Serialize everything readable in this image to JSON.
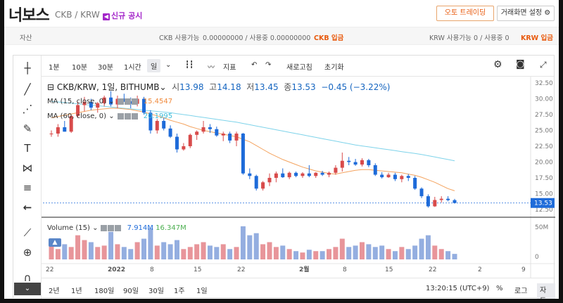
{
  "header": {
    "brand": "너보스",
    "pair": "CKB / KRW",
    "notice": "신규 공시",
    "auto_trade": "오토 트레이딩",
    "screen_settings": "거래화면 설정"
  },
  "balance": {
    "assets_label": "자산",
    "ckb_label": "CKB 사용가능",
    "ckb_value": "0.00000000 / 사용중  0.00000000",
    "ckb_deposit": "CKB 입금",
    "krw_label": "KRW 사용가능",
    "krw_value": "0 / 사용중  0",
    "krw_deposit": "KRW 입금"
  },
  "toolbar": {
    "intervals": [
      "1분",
      "10분",
      "30분",
      "1시간",
      "일"
    ],
    "selected_interval": "일",
    "indicators": "지표",
    "refresh": "새로고침",
    "reset": "초기화"
  },
  "legend": {
    "symbol": "CKB/KRW, 1일, BITHUMB",
    "open_label": "시",
    "open": "13.98",
    "high_label": "고",
    "high": "14.18",
    "low_label": "저",
    "low": "13.45",
    "close_label": "종",
    "close": "13.53",
    "change": "−0.45 (−3.22%)",
    "ma15_label": "MA (15, close, 0)",
    "ma15": "15.4547",
    "ma60_label": "MA (60, close, 0)",
    "ma60": "20.1995",
    "vol_label": "Volume (15)",
    "vol_val": "7.914M",
    "vol_ma": "16.347M"
  },
  "bottom": {
    "ranges": [
      "2년",
      "1년",
      "180일",
      "90일",
      "30일",
      "1주",
      "1일"
    ],
    "time": "13:20:15 (UTC+9)",
    "pct": "%",
    "log": "로그",
    "auto": "자동"
  },
  "colors": {
    "up": "#d84b4b",
    "down": "#1e6bd9",
    "ma15": "#f4a35f",
    "ma60": "#7ed3ea",
    "accent": "#e8590c"
  },
  "chart_data": {
    "type": "candlestick",
    "y_ticks": [
      "32.50",
      "30.00",
      "27.50",
      "25.00",
      "22.50",
      "20.00",
      "17.50",
      "15.00",
      "12.50"
    ],
    "last_price": "13.53",
    "volume_ticks": [
      "50M",
      "0"
    ],
    "x_ticks": [
      "22",
      "2022",
      "8",
      "15",
      "22",
      "2월",
      "8",
      "15",
      "22",
      "2",
      "9"
    ],
    "candles": [
      [
        24.5,
        25.0,
        24.0,
        24.5
      ],
      [
        24.5,
        26.0,
        24.0,
        25.5
      ],
      [
        25.5,
        26.5,
        24.8,
        24.8
      ],
      [
        24.8,
        27.5,
        24.6,
        27.3
      ],
      [
        27.3,
        29.5,
        27.0,
        29.0
      ],
      [
        29.0,
        30.3,
        28.0,
        29.5
      ],
      [
        29.5,
        30.0,
        28.2,
        28.6
      ],
      [
        28.6,
        29.5,
        27.8,
        29.3
      ],
      [
        29.3,
        30.5,
        28.8,
        30.2
      ],
      [
        30.2,
        31.2,
        28.8,
        29.1
      ],
      [
        29.1,
        30.5,
        28.5,
        30.0
      ],
      [
        30.0,
        30.8,
        29.5,
        29.6
      ],
      [
        29.6,
        30.2,
        28.5,
        29.2
      ],
      [
        29.2,
        30.5,
        28.8,
        30.0
      ],
      [
        30.0,
        30.3,
        27.5,
        27.8
      ],
      [
        27.8,
        28.2,
        24.5,
        25.0
      ],
      [
        25.0,
        26.8,
        24.5,
        26.5
      ],
      [
        26.5,
        27.0,
        25.0,
        25.3
      ],
      [
        25.3,
        25.8,
        23.8,
        24.0
      ],
      [
        24.0,
        24.5,
        21.5,
        22.0
      ],
      [
        22.0,
        23.0,
        21.8,
        22.5
      ],
      [
        22.5,
        24.5,
        22.2,
        24.3
      ],
      [
        24.3,
        25.0,
        23.5,
        24.8
      ],
      [
        24.8,
        26.5,
        24.5,
        25.5
      ],
      [
        25.5,
        26.0,
        24.6,
        25.2
      ],
      [
        25.2,
        25.6,
        24.0,
        24.2
      ],
      [
        24.2,
        24.8,
        23.3,
        24.5
      ],
      [
        24.5,
        24.8,
        23.0,
        23.4
      ],
      [
        23.4,
        24.8,
        22.5,
        24.5
      ],
      [
        24.5,
        24.6,
        18.0,
        18.2
      ],
      [
        18.2,
        19.0,
        17.3,
        17.8
      ],
      [
        17.8,
        18.0,
        15.5,
        15.8
      ],
      [
        15.8,
        17.0,
        15.5,
        16.8
      ],
      [
        16.8,
        18.2,
        16.2,
        17.5
      ],
      [
        17.5,
        18.5,
        16.8,
        18.2
      ],
      [
        18.2,
        19.0,
        17.5,
        17.6
      ],
      [
        17.6,
        18.5,
        17.3,
        18.3
      ],
      [
        18.3,
        18.5,
        17.6,
        17.8
      ],
      [
        17.8,
        18.4,
        17.5,
        18.2
      ],
      [
        18.2,
        19.5,
        17.6,
        17.8
      ],
      [
        17.8,
        18.4,
        17.5,
        18.3
      ],
      [
        18.3,
        18.6,
        17.8,
        18.0
      ],
      [
        18.0,
        18.5,
        17.6,
        18.3
      ],
      [
        18.3,
        19.5,
        18.0,
        19.1
      ],
      [
        19.1,
        21.5,
        18.5,
        20.2
      ],
      [
        20.2,
        20.8,
        19.5,
        20.0
      ],
      [
        20.0,
        20.5,
        19.4,
        19.6
      ],
      [
        19.6,
        20.6,
        19.3,
        20.3
      ],
      [
        20.3,
        20.5,
        19.2,
        19.5
      ],
      [
        19.5,
        19.8,
        17.8,
        18.0
      ],
      [
        18.0,
        18.4,
        17.4,
        17.6
      ],
      [
        17.6,
        18.3,
        17.5,
        18.0
      ],
      [
        18.0,
        18.3,
        17.0,
        17.3
      ],
      [
        17.3,
        18.0,
        16.8,
        17.8
      ],
      [
        17.8,
        18.1,
        17.0,
        17.5
      ],
      [
        17.5,
        17.8,
        15.6,
        15.8
      ],
      [
        15.8,
        16.0,
        14.3,
        14.6
      ],
      [
        14.6,
        14.9,
        12.8,
        13.0
      ],
      [
        13.0,
        14.5,
        12.9,
        14.0
      ],
      [
        14.0,
        14.6,
        13.6,
        14.2
      ],
      [
        14.2,
        14.6,
        13.8,
        13.98
      ],
      [
        13.98,
        14.18,
        13.45,
        13.53
      ]
    ],
    "ma60": [
      29.6,
      29.5,
      29.4,
      29.3,
      29.2,
      29.1,
      29.0,
      28.9,
      28.8,
      28.7,
      28.6,
      28.5,
      28.4,
      28.3,
      28.2,
      28.1,
      28.0,
      27.9,
      27.8,
      27.65,
      27.5,
      27.35,
      27.2,
      27.05,
      26.9,
      26.75,
      26.6,
      26.45,
      26.3,
      26.1,
      25.9,
      25.7,
      25.5,
      25.3,
      25.1,
      24.9,
      24.7,
      24.5,
      24.3,
      24.1,
      23.9,
      23.7,
      23.5,
      23.3,
      23.1,
      22.9,
      22.7,
      22.55,
      22.4,
      22.25,
      22.1,
      21.95,
      21.8,
      21.65,
      21.5,
      21.35,
      21.2,
      21.0,
      20.8,
      20.6,
      20.4,
      20.2
    ],
    "ma15": [
      27.0,
      27.2,
      27.4,
      27.6,
      27.8,
      28.0,
      28.2,
      28.3,
      28.4,
      28.5,
      28.5,
      28.4,
      28.3,
      28.1,
      27.9,
      27.6,
      27.3,
      27.0,
      26.6,
      26.3,
      26.0,
      25.6,
      25.3,
      25.0,
      24.8,
      24.6,
      24.4,
      24.2,
      24.0,
      23.6,
      23.2,
      22.6,
      22.0,
      21.4,
      20.9,
      20.4,
      20.0,
      19.6,
      19.2,
      18.9,
      18.6,
      18.4,
      18.2,
      18.1,
      18.3,
      18.5,
      18.7,
      18.8,
      18.8,
      18.7,
      18.6,
      18.5,
      18.4,
      18.3,
      18.1,
      17.9,
      17.6,
      17.2,
      16.8,
      16.3,
      15.8,
      15.45
    ],
    "volume": [
      20,
      15,
      22,
      18,
      35,
      28,
      25,
      18,
      20,
      40,
      22,
      18,
      15,
      25,
      30,
      45,
      20,
      25,
      22,
      28,
      15,
      18,
      22,
      25,
      20,
      18,
      22,
      15,
      18,
      48,
      35,
      38,
      22,
      25,
      18,
      20,
      15,
      12,
      10,
      14,
      12,
      12,
      15,
      18,
      30,
      18,
      20,
      25,
      22,
      18,
      20,
      15,
      12,
      18,
      15,
      20,
      30,
      35,
      20,
      15,
      12,
      8
    ]
  }
}
